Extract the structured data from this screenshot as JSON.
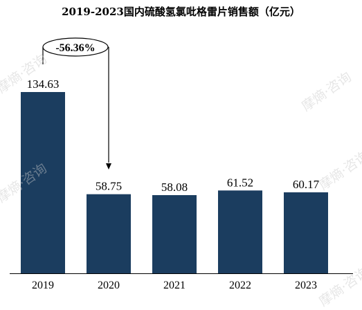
{
  "chart_data": {
    "type": "bar",
    "title": "2019-2023国内硫酸氢氯吡格雷片销售额（亿元）",
    "categories": [
      "2019",
      "2020",
      "2021",
      "2022",
      "2023"
    ],
    "values": [
      134.63,
      58.75,
      58.08,
      61.52,
      60.17
    ],
    "value_labels": [
      "134.63",
      "58.75",
      "58.08",
      "61.52",
      "60.17"
    ],
    "ylim": [
      0,
      145
    ],
    "grid": false,
    "annotation": {
      "text": "-56.36%",
      "from": "2019",
      "to": "2020"
    }
  },
  "watermark": "摩熵·咨询",
  "colors": {
    "bar": "#1b3d5f",
    "axis": "#000000",
    "text": "#000000"
  }
}
